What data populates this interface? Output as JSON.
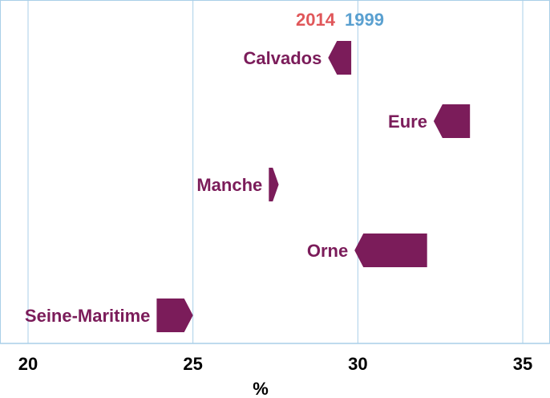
{
  "chart_data": {
    "type": "arrow",
    "title": "",
    "xlabel": "%",
    "xlim": [
      19.7,
      36
    ],
    "xticks": [
      20,
      25,
      30,
      35
    ],
    "grid": true,
    "legend": [
      {
        "label": "2014",
        "color": "#e0575a"
      },
      {
        "label": "1999",
        "color": "#5aa0d0"
      }
    ],
    "categories": [
      "Calvados",
      "Eure",
      "Manche",
      "Orne",
      "Seine-Maritime"
    ],
    "series": [
      {
        "name": "1999",
        "values": [
          29.8,
          33.4,
          27.3,
          32.1,
          23.9
        ]
      },
      {
        "name": "2014",
        "values": [
          29.1,
          32.3,
          27.6,
          29.9,
          25.0
        ]
      }
    ],
    "colors": {
      "arrow": "#7b1c5a",
      "label": "#7b1c5a",
      "grid": "#a9cfe8",
      "frame": "#a9cfe8"
    }
  }
}
